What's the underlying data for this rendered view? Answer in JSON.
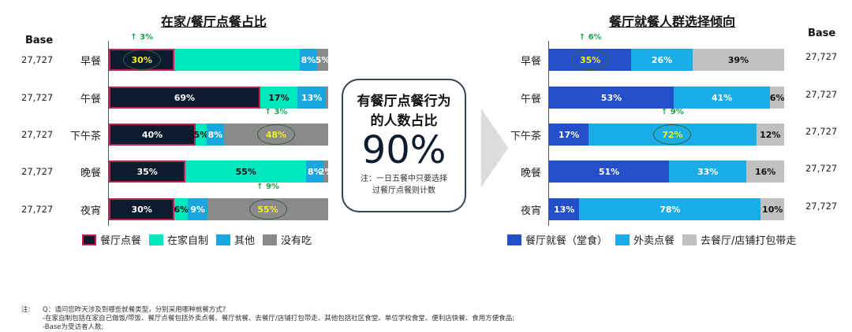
{
  "left_chart": {
    "title": "在家/餐厅点餐占比",
    "base_header": "Base",
    "rows": [
      {
        "cat": "早餐",
        "base": "27,727",
        "segments": [
          30,
          57,
          8,
          5
        ],
        "labels": [
          "30%",
          "",
          "8%",
          "5%"
        ],
        "up": "↑ 3%"
      },
      {
        "cat": "午餐",
        "base": "27,727",
        "segments": [
          69,
          17,
          13,
          1
        ],
        "labels": [
          "69%",
          "17%",
          "13%",
          ""
        ],
        "up": ""
      },
      {
        "cat": "下午茶",
        "base": "27,727",
        "segments": [
          40,
          5,
          8,
          48
        ],
        "labels": [
          "40%",
          "5%",
          "8%",
          "48%"
        ],
        "up": "↑ 3%"
      },
      {
        "cat": "晚餐",
        "base": "27,727",
        "segments": [
          35,
          55,
          8,
          2
        ],
        "labels": [
          "35%",
          "55%",
          "8%",
          "2%"
        ],
        "up": ""
      },
      {
        "cat": "夜宵",
        "base": "27,727",
        "segments": [
          30,
          6,
          9,
          55
        ],
        "labels": [
          "30%",
          "6%",
          "9%",
          "55%"
        ],
        "up": "↑ 9%"
      }
    ],
    "legend": [
      "餐厅点餐",
      "在家自制",
      "其他",
      "没有吃"
    ],
    "colors": [
      "#0c1b2e",
      "#00e8c0",
      "#1aa7e0",
      "#8a8a8a"
    ]
  },
  "center_box": {
    "line1": "有餐厅点餐行为",
    "line2": "的人数占比",
    "value": "90%",
    "note1": "注：一日五餐中只要选择",
    "note2": "过餐厅点餐则计数"
  },
  "right_chart": {
    "title": "餐厅就餐人群选择倾向",
    "base_header": "Base",
    "rows": [
      {
        "cat": "早餐",
        "base": "27,727",
        "segments": [
          35,
          26,
          39
        ],
        "labels": [
          "35%",
          "26%",
          "39%"
        ],
        "up": "↑ 6%"
      },
      {
        "cat": "午餐",
        "base": "27,727",
        "segments": [
          53,
          41,
          6
        ],
        "labels": [
          "53%",
          "41%",
          "6%"
        ],
        "up": ""
      },
      {
        "cat": "下午茶",
        "base": "27,727",
        "segments": [
          17,
          72,
          12
        ],
        "labels": [
          "17%",
          "72%",
          "12%"
        ],
        "up": "↑ 9%"
      },
      {
        "cat": "晚餐",
        "base": "27,727",
        "segments": [
          51,
          33,
          16
        ],
        "labels": [
          "51%",
          "33%",
          "16%"
        ],
        "up": ""
      },
      {
        "cat": "夜宵",
        "base": "27,727",
        "segments": [
          13,
          78,
          10
        ],
        "labels": [
          "13%",
          "78%",
          "10%"
        ],
        "up": ""
      }
    ],
    "legend": [
      "餐厅就餐（堂食）",
      "外卖点餐",
      "去餐厅/店铺打包带走"
    ],
    "colors": [
      "#2350c8",
      "#1aace6",
      "#c0c0c0"
    ]
  },
  "footnote": {
    "prefix": "注:",
    "line1": "Q：请问您昨天涉及到哪些就餐类型，分别采用哪种就餐方式?",
    "line2": "-在家自制包括在家自己做饭/带饭、餐厅点餐包括外卖点餐、餐厅就餐、去餐厅/店铺打包带走、其他包括社区食堂、单位学校食堂、便利店快餐、食用方便食品;",
    "line3": "-Base为受访者人数;"
  },
  "chart_data": [
    {
      "type": "bar",
      "orientation": "horizontal",
      "stacked": true,
      "title": "在家/餐厅点餐占比",
      "categories": [
        "早餐",
        "午餐",
        "下午茶",
        "晚餐",
        "夜宵"
      ],
      "series": [
        {
          "name": "餐厅点餐",
          "values": [
            30,
            69,
            40,
            35,
            30
          ]
        },
        {
          "name": "在家自制",
          "values": [
            57,
            17,
            5,
            55,
            6
          ]
        },
        {
          "name": "其他",
          "values": [
            8,
            13,
            8,
            8,
            9
          ]
        },
        {
          "name": "没有吃",
          "values": [
            5,
            1,
            48,
            2,
            55
          ]
        }
      ],
      "base": [
        "27,727",
        "27,727",
        "27,727",
        "27,727",
        "27,727"
      ],
      "annotations": [
        "早餐 餐厅点餐 ↑3%",
        "下午茶 没有吃 ↑3%",
        "夜宵 没有吃 ↑9%"
      ],
      "legend_position": "bottom"
    },
    {
      "type": "bar",
      "orientation": "horizontal",
      "stacked": true,
      "title": "餐厅就餐人群选择倾向",
      "categories": [
        "早餐",
        "午餐",
        "下午茶",
        "晚餐",
        "夜宵"
      ],
      "series": [
        {
          "name": "餐厅就餐（堂食）",
          "values": [
            35,
            53,
            17,
            51,
            13
          ]
        },
        {
          "name": "外卖点餐",
          "values": [
            26,
            41,
            72,
            33,
            78
          ]
        },
        {
          "name": "去餐厅/店铺打包带走",
          "values": [
            39,
            6,
            12,
            16,
            10
          ]
        }
      ],
      "base": [
        "27,727",
        "27,727",
        "27,727",
        "27,727",
        "27,727"
      ],
      "annotations": [
        "早餐 餐厅就餐 ↑6%",
        "下午茶 外卖点餐 ↑9%"
      ],
      "legend_position": "bottom"
    }
  ]
}
